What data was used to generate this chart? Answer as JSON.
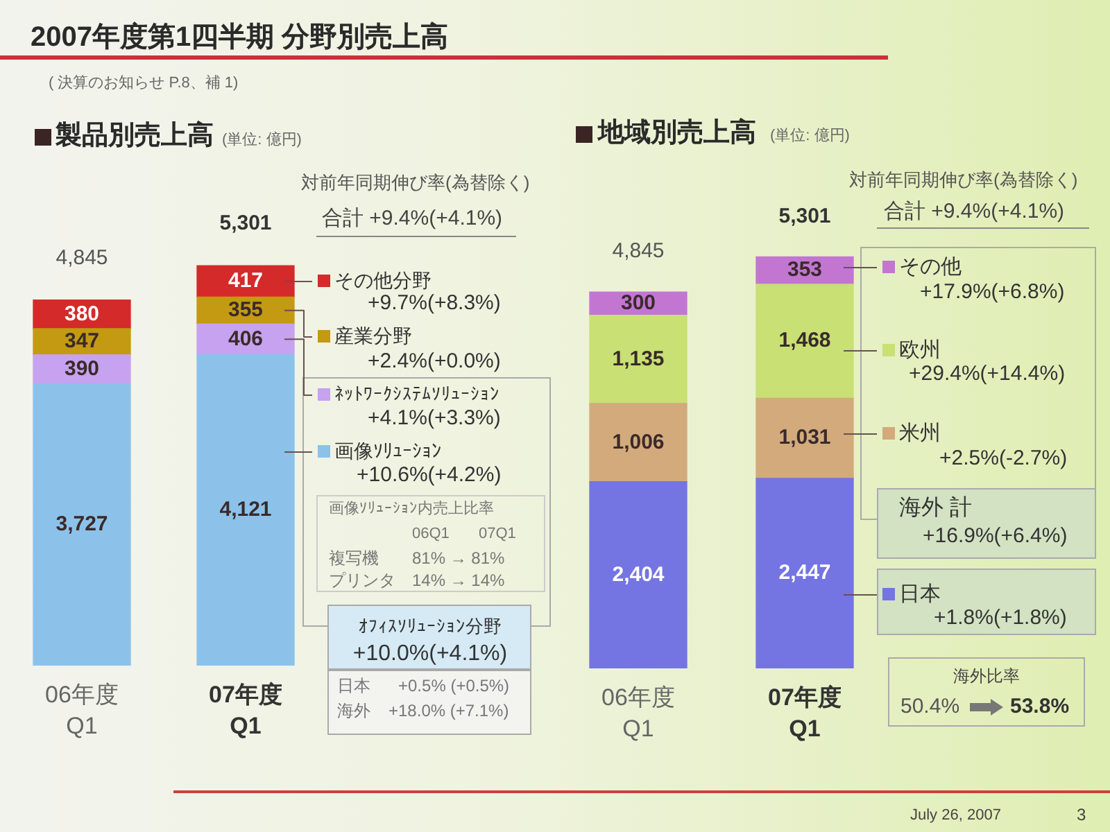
{
  "chart_data": [
    {
      "type": "other",
      "title": "2007年度第1四半期 分野別売上高",
      "subtitle": "( 決算のお知らせ P.8、補 1)",
      "annotations": [
        "July 26, 2007",
        "3"
      ]
    },
    {
      "type": "bar",
      "title": "製品別売上高",
      "subtitle": "(単位: 億円)",
      "categories": [
        "06年度 Q1",
        "07年度 Q1"
      ],
      "stacked": true,
      "legend": "right",
      "totals": [
        "4,845",
        "5,301"
      ],
      "series": [
        {
          "name": "画像ｿﾘｭｰｼｮﾝ",
          "color": "#8cc2ea",
          "values": [
            3727,
            4121
          ],
          "value_labels": [
            "3,727",
            "4,121"
          ]
        },
        {
          "name": "ﾈｯﾄﾜｰｸｼｽﾃﾑｿﾘｭｰｼｮﾝ",
          "color": "#c6a2f0",
          "values": [
            390,
            406
          ],
          "value_labels": [
            "390",
            "406"
          ]
        },
        {
          "name": "産業分野",
          "color": "#c39a12",
          "values": [
            347,
            355
          ],
          "value_labels": [
            "347",
            "355"
          ]
        },
        {
          "name": "その他分野",
          "color": "#d42a2a",
          "values": [
            380,
            417
          ],
          "value_labels": [
            "380",
            "417"
          ]
        }
      ],
      "annotations": [
        "対前年同期伸び率(為替除く)",
        "合計 +9.4%(+4.1%)",
        "+9.7%(+8.3%)",
        "+2.4%(+0.0%)",
        "+4.1%(+3.3%)",
        "+10.6%(+4.2%)",
        "画像ｿﾘｭｰｼｮﾝ内売上比率",
        "06Q1",
        "07Q1",
        "複写機",
        "81% → 81%",
        "プリンタ",
        "14% → 14%",
        "ｵﾌｨｽｿﾘｭｰｼｮﾝ分野",
        "+10.0%(+4.1%)",
        "日本",
        "+0.5% (+0.5%)",
        "海外",
        "+18.0% (+7.1%)"
      ]
    },
    {
      "type": "bar",
      "title": "地域別売上高",
      "subtitle": "(単位: 億円)",
      "categories": [
        "06年度 Q1",
        "07年度 Q1"
      ],
      "stacked": true,
      "legend": "right",
      "totals": [
        "4,845",
        "5,301"
      ],
      "series": [
        {
          "name": "日本",
          "color": "#7474e2",
          "values": [
            2404,
            2447
          ],
          "value_labels": [
            "2,404",
            "2,447"
          ]
        },
        {
          "name": "米州",
          "color": "#d2aa7c",
          "values": [
            1006,
            1031
          ],
          "value_labels": [
            "1,006",
            "1,031"
          ]
        },
        {
          "name": "欧州",
          "color": "#c8e074",
          "values": [
            1135,
            1468
          ],
          "value_labels": [
            "1,135",
            "1,468"
          ]
        },
        {
          "name": "その他",
          "color": "#c276d2",
          "values": [
            300,
            353
          ],
          "value_labels": [
            "300",
            "353"
          ]
        }
      ],
      "annotations": [
        "対前年同期伸び率(為替除く)",
        "合計 +9.4%(+4.1%)",
        "+17.9%(+6.8%)",
        "+29.4%(+14.4%)",
        "+2.5%(-2.7%)",
        "海外 計",
        "+16.9%(+6.4%)",
        "+1.8%(+1.8%)",
        "海外比率",
        "50.4%",
        "53.8%"
      ]
    }
  ]
}
